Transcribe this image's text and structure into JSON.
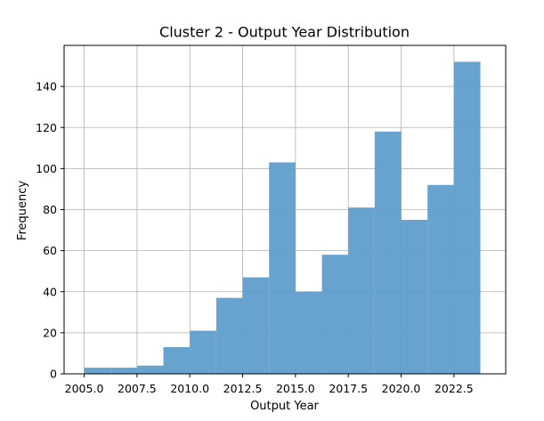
{
  "chart_data": {
    "type": "bar",
    "title": "Cluster 2 - Output Year Distribution",
    "xlabel": "Output Year",
    "ylabel": "Frequency",
    "xlim": [
      2004.05,
      2024.95
    ],
    "ylim": [
      0,
      160
    ],
    "grid": true,
    "bar_color": "#5f9ecb",
    "bar_opacity": 0.95,
    "x_ticks": [
      2005.0,
      2007.5,
      2010.0,
      2012.5,
      2015.0,
      2017.5,
      2020.0,
      2022.5
    ],
    "x_tick_labels": [
      "2005.0",
      "2007.5",
      "2010.0",
      "2012.5",
      "2015.0",
      "2017.5",
      "2020.0",
      "2022.5"
    ],
    "y_ticks": [
      0,
      20,
      40,
      60,
      80,
      100,
      120,
      140
    ],
    "y_tick_labels": [
      "0",
      "20",
      "40",
      "60",
      "80",
      "100",
      "120",
      "140"
    ],
    "bins": [
      {
        "start": 2005.0,
        "end": 2006.25,
        "value": 3
      },
      {
        "start": 2006.25,
        "end": 2007.5,
        "value": 3
      },
      {
        "start": 2007.5,
        "end": 2008.75,
        "value": 4
      },
      {
        "start": 2008.75,
        "end": 2010.0,
        "value": 13
      },
      {
        "start": 2010.0,
        "end": 2011.25,
        "value": 21
      },
      {
        "start": 2011.25,
        "end": 2012.5,
        "value": 37
      },
      {
        "start": 2012.5,
        "end": 2013.75,
        "value": 47
      },
      {
        "start": 2013.75,
        "end": 2015.0,
        "value": 103
      },
      {
        "start": 2015.0,
        "end": 2016.25,
        "value": 40
      },
      {
        "start": 2016.25,
        "end": 2017.5,
        "value": 58
      },
      {
        "start": 2017.5,
        "end": 2018.75,
        "value": 81
      },
      {
        "start": 2018.75,
        "end": 2020.0,
        "value": 118
      },
      {
        "start": 2020.0,
        "end": 2021.25,
        "value": 75
      },
      {
        "start": 2021.25,
        "end": 2022.5,
        "value": 92
      },
      {
        "start": 2022.5,
        "end": 2023.75,
        "value": 152
      }
    ]
  }
}
